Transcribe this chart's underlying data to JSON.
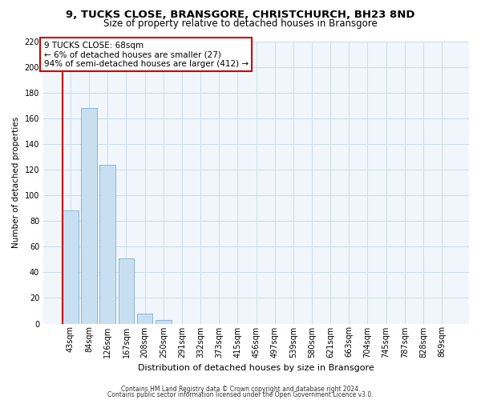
{
  "title": "9, TUCKS CLOSE, BRANSGORE, CHRISTCHURCH, BH23 8ND",
  "subtitle": "Size of property relative to detached houses in Bransgore",
  "xlabel": "Distribution of detached houses by size in Bransgore",
  "ylabel": "Number of detached properties",
  "bar_labels": [
    "43sqm",
    "84sqm",
    "126sqm",
    "167sqm",
    "208sqm",
    "250sqm",
    "291sqm",
    "332sqm",
    "373sqm",
    "415sqm",
    "456sqm",
    "497sqm",
    "539sqm",
    "580sqm",
    "621sqm",
    "663sqm",
    "704sqm",
    "745sqm",
    "787sqm",
    "828sqm",
    "869sqm"
  ],
  "bar_values": [
    88,
    168,
    124,
    51,
    8,
    3,
    0,
    0,
    0,
    0,
    0,
    0,
    0,
    0,
    0,
    0,
    0,
    0,
    0,
    0,
    0
  ],
  "bar_color": "#c8dff2",
  "bar_edge_color": "#7aafd4",
  "highlight_color": "#cc0000",
  "annotation_title": "9 TUCKS CLOSE: 68sqm",
  "annotation_line1": "← 6% of detached houses are smaller (27)",
  "annotation_line2": "94% of semi-detached houses are larger (412) →",
  "annotation_box_color": "#ffffff",
  "annotation_box_edge_color": "#cc0000",
  "ylim": [
    0,
    220
  ],
  "yticks": [
    0,
    20,
    40,
    60,
    80,
    100,
    120,
    140,
    160,
    180,
    200,
    220
  ],
  "footer1": "Contains HM Land Registry data © Crown copyright and database right 2024.",
  "footer2": "Contains public sector information licensed under the Open Government Licence v3.0.",
  "title_fontsize": 9.5,
  "subtitle_fontsize": 8.5,
  "xlabel_fontsize": 8,
  "ylabel_fontsize": 7.5,
  "tick_fontsize": 7,
  "annotation_fontsize": 7.5,
  "footer_fontsize": 5.5
}
